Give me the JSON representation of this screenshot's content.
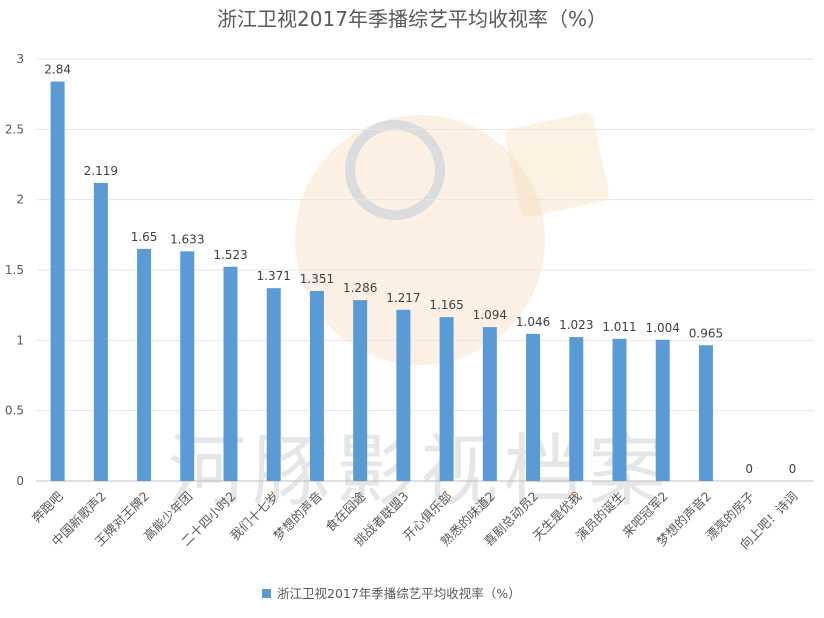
{
  "chart_data": {
    "type": "bar",
    "title": "浙江卫视2017年季播综艺平均收视率（%）",
    "categories": [
      "奔跑吧",
      "中国新歌声2",
      "王牌对王牌2",
      "高能少年团",
      "二十四小时2",
      "我们十七岁",
      "梦想的声音",
      "食在囧途",
      "挑战者联盟3",
      "开心俱乐部",
      "熟悉的味道2",
      "喜剧总动员2",
      "天生是优我",
      "演员的诞生",
      "来吧冠军2",
      "梦想的声音2",
      "漂亮的房子",
      "向上吧！诗词"
    ],
    "series": [
      {
        "name": "浙江卫视2017年季播综艺平均收视率（%）",
        "values": [
          2.84,
          2.119,
          1.65,
          1.633,
          1.523,
          1.371,
          1.351,
          1.286,
          1.217,
          1.165,
          1.094,
          1.046,
          1.023,
          1.011,
          1.004,
          0.965,
          0,
          0
        ],
        "labels": [
          "2.84",
          "2.119",
          "1.65",
          "1.633",
          "1.523",
          "1.371",
          "1.351",
          "1.286",
          "1.217",
          "1.165",
          "1.094",
          "1.046",
          "1.023",
          "1.011",
          "1.004",
          "0.965",
          "0",
          "0"
        ]
      }
    ],
    "ylim": [
      0,
      3
    ],
    "yticks": [
      "0",
      "0.5",
      "1",
      "1.5",
      "2",
      "2.5",
      "3"
    ],
    "grid": true,
    "legend": "bottom",
    "bar_color": "#5b9bd5"
  },
  "watermark": {
    "text": "河豚影视档案"
  }
}
